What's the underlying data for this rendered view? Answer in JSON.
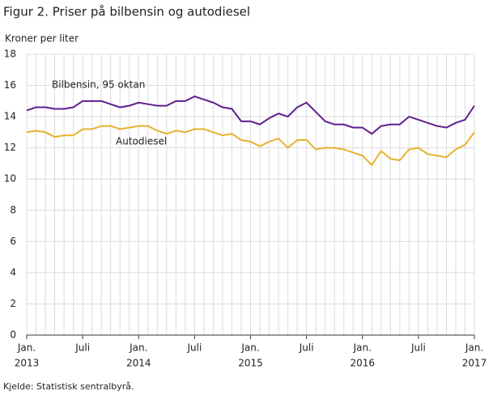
{
  "chart_data": {
    "type": "line",
    "title": "Figur 2. Priser på bilbensin og autodiesel",
    "y_label": "Kroner per liter",
    "source": "Kjelde: Statistisk sentralbyrå.",
    "categories": [
      "Jan.",
      null,
      null,
      null,
      null,
      null,
      "Juli",
      null,
      null,
      null,
      null,
      null,
      "Jan.",
      null,
      null,
      null,
      null,
      null,
      "Juli",
      null,
      null,
      null,
      null,
      null,
      "Jan.",
      null,
      null,
      null,
      null,
      null,
      "Juli",
      null,
      null,
      null,
      null,
      null,
      "Jan.",
      null,
      null,
      null,
      null,
      null,
      "Juli",
      null,
      null,
      null,
      null,
      null,
      "Jan."
    ],
    "years": [
      "2013",
      null,
      null,
      null,
      null,
      null,
      null,
      null,
      null,
      null,
      null,
      null,
      "2014",
      null,
      null,
      null,
      null,
      null,
      null,
      null,
      null,
      null,
      null,
      null,
      "2015",
      null,
      null,
      null,
      null,
      null,
      null,
      null,
      null,
      null,
      null,
      null,
      "2016",
      null,
      null,
      null,
      null,
      null,
      null,
      null,
      null,
      null,
      null,
      null,
      "2017"
    ],
    "series": [
      {
        "name": "Bilbensin, 95 oktan",
        "color": "#5e1f8e",
        "values": [
          14.4,
          14.6,
          14.6,
          14.5,
          14.5,
          14.6,
          15.0,
          15.0,
          15.0,
          14.8,
          14.6,
          14.7,
          14.9,
          14.8,
          14.7,
          14.7,
          15.0,
          15.0,
          15.3,
          15.1,
          14.9,
          14.6,
          14.5,
          13.7,
          13.7,
          13.5,
          13.9,
          14.2,
          14.0,
          14.6,
          14.9,
          14.3,
          13.7,
          13.5,
          13.5,
          13.3,
          13.3,
          12.9,
          13.4,
          13.5,
          13.5,
          14.0,
          13.8,
          13.6,
          13.4,
          13.3,
          13.6,
          13.8,
          14.7
        ]
      },
      {
        "name": "Autodiesel",
        "color": "#e8b12e",
        "values": [
          13.0,
          13.1,
          13.0,
          12.7,
          12.8,
          12.8,
          13.2,
          13.2,
          13.4,
          13.4,
          13.2,
          13.3,
          13.4,
          13.4,
          13.1,
          12.9,
          13.1,
          13.0,
          13.2,
          13.2,
          13.0,
          12.8,
          12.9,
          12.5,
          12.4,
          12.1,
          12.4,
          12.6,
          12.0,
          12.5,
          12.5,
          11.9,
          12.0,
          12.0,
          11.9,
          11.7,
          11.5,
          10.9,
          11.8,
          11.3,
          11.2,
          11.9,
          12.0,
          11.6,
          11.5,
          11.4,
          11.9,
          12.2,
          13.0
        ]
      }
    ],
    "ylim": [
      0,
      18
    ],
    "yticks": [
      0,
      2,
      4,
      6,
      8,
      10,
      12,
      14,
      16,
      18
    ],
    "grid": true
  }
}
